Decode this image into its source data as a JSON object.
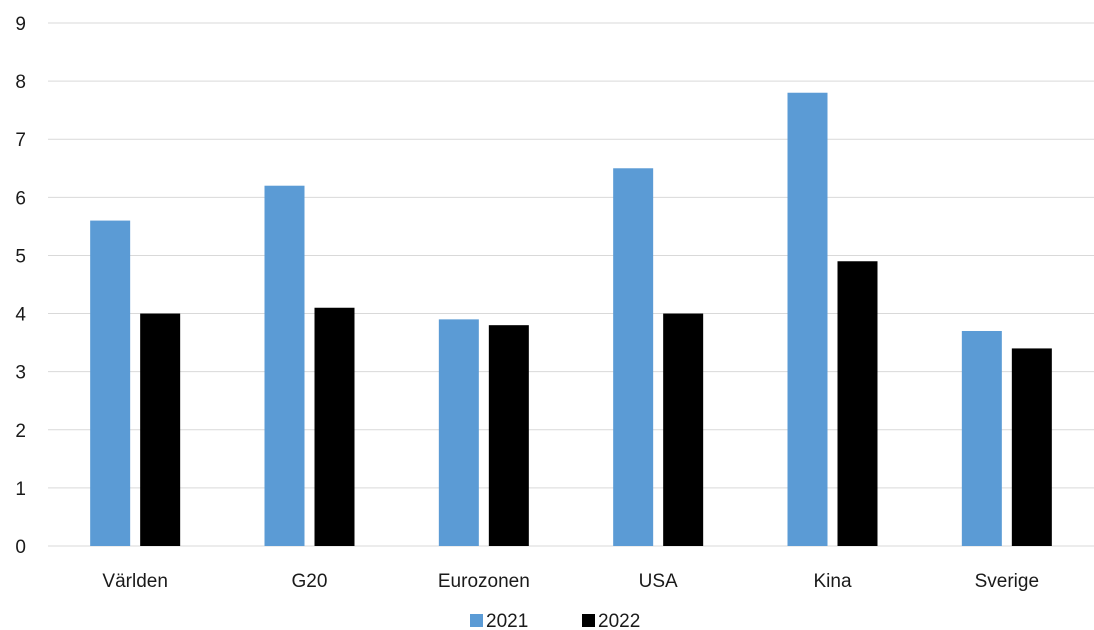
{
  "chart_data": {
    "type": "bar",
    "title": "",
    "xlabel": "",
    "ylabel": "",
    "categories": [
      "Världen",
      "G20",
      "Eurozonen",
      "USA",
      "Kina",
      "Sverige"
    ],
    "series": [
      {
        "name": "2021",
        "color": "#5b9bd5",
        "values": [
          5.6,
          6.2,
          3.9,
          6.5,
          7.8,
          3.7
        ]
      },
      {
        "name": "2022",
        "color": "#000000",
        "values": [
          4.0,
          4.1,
          3.8,
          4.0,
          4.9,
          3.4
        ]
      }
    ],
    "ylim": [
      0,
      9
    ],
    "yticks": [
      "0",
      "1",
      "2",
      "3",
      "4",
      "5",
      "6",
      "7",
      "8",
      "9"
    ],
    "grid": true,
    "legend_position": "bottom"
  }
}
